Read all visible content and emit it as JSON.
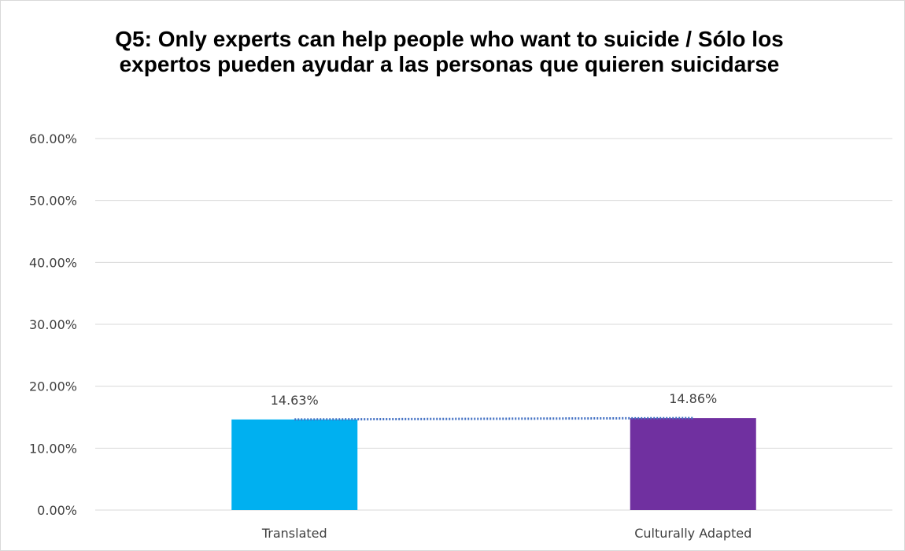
{
  "chart_data": {
    "type": "bar",
    "title": "Q5: Only experts can help people who want to suicide / Sólo los expertos pueden ayudar a las personas que quieren suicidarse",
    "categories": [
      "Translated",
      "Culturally Adapted"
    ],
    "values": [
      14.63,
      14.86
    ],
    "data_labels": [
      "14.63%",
      "14.86%"
    ],
    "bar_colors": [
      "#00B0F0",
      "#7030A0"
    ],
    "ylim": [
      0,
      60
    ],
    "yticks": [
      0,
      10,
      20,
      30,
      40,
      50,
      60
    ],
    "ytick_labels": [
      "0.00%",
      "10.00%",
      "20.00%",
      "30.00%",
      "40.00%",
      "50.00%",
      "60.00%"
    ],
    "grid": true,
    "legend": "none",
    "trendline": {
      "type": "linear",
      "style": "dotted",
      "color": "#4472C4"
    }
  }
}
